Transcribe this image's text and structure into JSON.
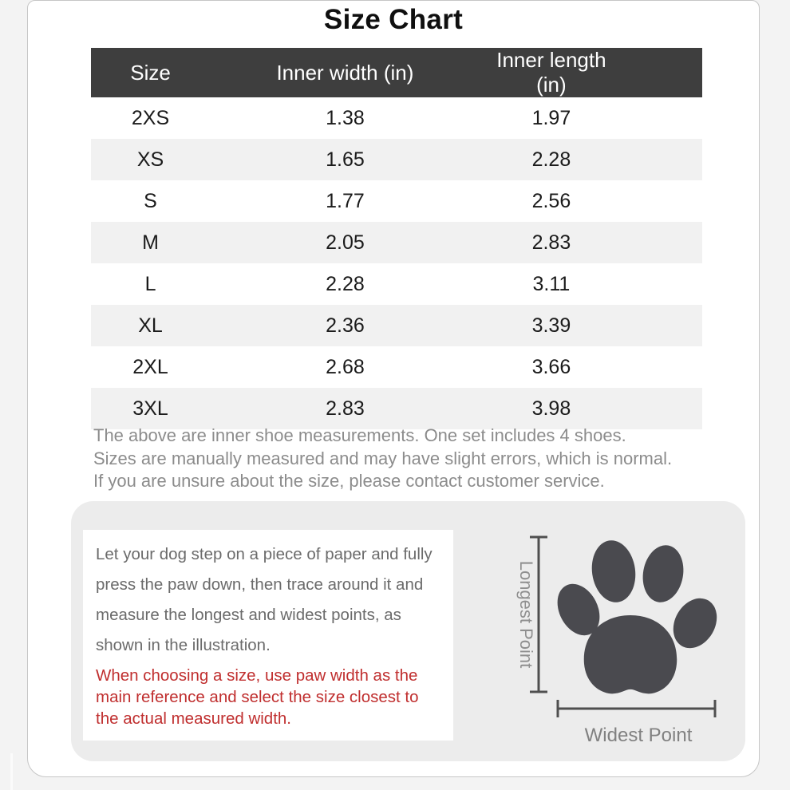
{
  "title": "Size Chart",
  "notes": "The above are inner shoe measurements. One set includes 4 shoes.\nSizes are manually measured and may have slight errors, which is normal.\nIf you are unsure about the size, please contact customer service.",
  "guide": {
    "instructions": "Let your dog step on a piece of paper and fully\npress the paw down, then trace around it and\nmeasure the longest and widest points, as\nshown in the illustration.",
    "warning": "When choosing a size, use paw width as the\nmain reference and select the size closest to\nthe actual measured width.",
    "vertical_label": "Longest Point",
    "horizontal_label": "Widest Point"
  },
  "chart_data": {
    "type": "table",
    "title": "Size Chart",
    "columns": [
      "Size",
      "Inner width (in)",
      "Inner length (in)"
    ],
    "rows": [
      [
        "2XS",
        1.38,
        1.97
      ],
      [
        "XS",
        1.65,
        2.28
      ],
      [
        "S",
        1.77,
        2.56
      ],
      [
        "M",
        2.05,
        2.83
      ],
      [
        "L",
        2.28,
        3.11
      ],
      [
        "XL",
        2.36,
        3.39
      ],
      [
        "2XL",
        2.68,
        3.66
      ],
      [
        "3XL",
        2.83,
        3.98
      ]
    ]
  },
  "colors": {
    "header_bg": "#3e3e3e",
    "header_text": "#ffffff",
    "row_alt_bg": "#f1f1f1",
    "note_text": "#8c8c8c",
    "warning_text": "#c02f2f",
    "paw": "#4a4a4f",
    "panel_bg": "#ececec"
  }
}
